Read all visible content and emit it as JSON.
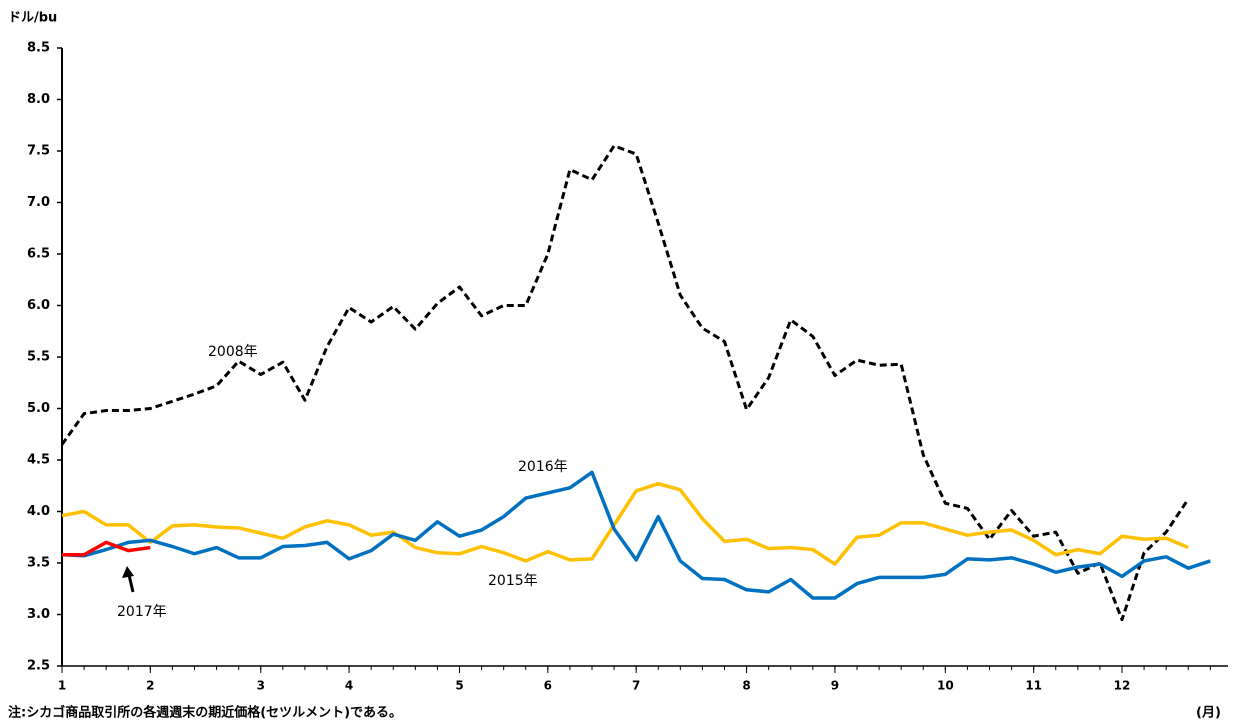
{
  "chart_data": {
    "type": "line",
    "y_axis_label": "ドル/bu",
    "x_axis_label": "(月)",
    "note": "注:シカゴ商品取引所の各週週末の期近価格(セツルメント)である。",
    "annotations": [
      "2008年",
      "2016年",
      "2015年",
      "2017年"
    ],
    "x": [
      0,
      1,
      2,
      3,
      4,
      5,
      6,
      7,
      8,
      9,
      10,
      11,
      12,
      13,
      14,
      15,
      16,
      17,
      18,
      19,
      20,
      21,
      22,
      23,
      24,
      25,
      26,
      27,
      28,
      29,
      30,
      31,
      32,
      33,
      34,
      35,
      36,
      37,
      38,
      39,
      40,
      41,
      42,
      43,
      44,
      45,
      46,
      47,
      48,
      49,
      50,
      51,
      52
    ],
    "xlim": [
      0,
      52.8
    ],
    "xticks": [
      {
        "value": 0,
        "label": "1"
      },
      {
        "value": 4,
        "label": "2"
      },
      {
        "value": 9,
        "label": "3"
      },
      {
        "value": 13,
        "label": "4"
      },
      {
        "value": 18,
        "label": "5"
      },
      {
        "value": 22,
        "label": "6"
      },
      {
        "value": 26,
        "label": "7"
      },
      {
        "value": 31,
        "label": "8"
      },
      {
        "value": 35,
        "label": "9"
      },
      {
        "value": 40,
        "label": "10"
      },
      {
        "value": 44,
        "label": "11"
      },
      {
        "value": 48,
        "label": "12"
      }
    ],
    "ylim": [
      2.5,
      8.5
    ],
    "yticks": [
      2.5,
      {
        "value": 3,
        "label": "3.0"
      },
      3.5,
      {
        "value": 4,
        "label": "4.0"
      },
      4.5,
      {
        "value": 5,
        "label": "5.0"
      },
      5.5,
      {
        "value": 6,
        "label": "6.0"
      },
      6.5,
      {
        "value": 7,
        "label": "7.0"
      },
      7.5,
      {
        "value": 8,
        "label": "8.0"
      },
      8.5
    ],
    "series": [
      {
        "name": "2008年",
        "color": "#000000",
        "dashed": true,
        "values": [
          4.65,
          4.95,
          4.98,
          4.98,
          5.0,
          5.07,
          5.14,
          5.22,
          5.46,
          5.33,
          5.45,
          5.08,
          5.6,
          5.98,
          5.84,
          5.99,
          5.77,
          6.02,
          6.18,
          5.9,
          6.0,
          6.0,
          6.5,
          7.32,
          7.22,
          7.55,
          7.47,
          6.8,
          6.1,
          5.78,
          5.65,
          4.99,
          5.3,
          5.86,
          5.7,
          5.32,
          5.47,
          5.42,
          5.43,
          4.55,
          4.08,
          4.03,
          3.73,
          4.01,
          3.76,
          3.8,
          3.4,
          3.5,
          2.95,
          3.6,
          3.8,
          4.12,
          null
        ]
      },
      {
        "name": "2015年",
        "color": "#ffc000",
        "dashed": false,
        "values": [
          3.96,
          4.0,
          3.87,
          3.87,
          3.7,
          3.86,
          3.87,
          3.85,
          3.84,
          3.79,
          3.74,
          3.85,
          3.91,
          3.87,
          3.77,
          3.8,
          3.65,
          3.6,
          3.59,
          3.66,
          3.6,
          3.52,
          3.61,
          3.53,
          3.54,
          3.87,
          4.2,
          4.27,
          4.21,
          3.93,
          3.71,
          3.73,
          3.64,
          3.65,
          3.63,
          3.49,
          3.75,
          3.77,
          3.89,
          3.89,
          3.83,
          3.77,
          3.8,
          3.82,
          3.72,
          3.58,
          3.63,
          3.59,
          3.76,
          3.73,
          3.74,
          3.65,
          null
        ]
      },
      {
        "name": "2016年",
        "color": "#0070c0",
        "dashed": false,
        "values": [
          3.58,
          3.57,
          3.63,
          3.7,
          3.72,
          3.66,
          3.59,
          3.65,
          3.55,
          3.55,
          3.66,
          3.67,
          3.7,
          3.54,
          3.62,
          3.78,
          3.72,
          3.9,
          3.76,
          3.82,
          3.95,
          4.13,
          4.18,
          4.23,
          4.38,
          3.83,
          3.53,
          3.95,
          3.52,
          3.35,
          3.34,
          3.24,
          3.22,
          3.34,
          3.16,
          3.16,
          3.3,
          3.36,
          3.36,
          3.36,
          3.39,
          3.54,
          3.53,
          3.55,
          3.49,
          3.41,
          3.46,
          3.49,
          3.37,
          3.52,
          3.56,
          3.45,
          3.52
        ]
      },
      {
        "name": "2017年",
        "color": "#ff0000",
        "dashed": false,
        "values": [
          3.58,
          3.58,
          3.7,
          3.62,
          3.65,
          null,
          null,
          null,
          null,
          null,
          null,
          null,
          null,
          null,
          null,
          null,
          null,
          null,
          null,
          null,
          null,
          null,
          null,
          null,
          null,
          null,
          null,
          null,
          null,
          null,
          null,
          null,
          null,
          null,
          null,
          null,
          null,
          null,
          null,
          null,
          null,
          null,
          null,
          null,
          null,
          null,
          null,
          null,
          null,
          null,
          null,
          null,
          null
        ]
      }
    ]
  }
}
